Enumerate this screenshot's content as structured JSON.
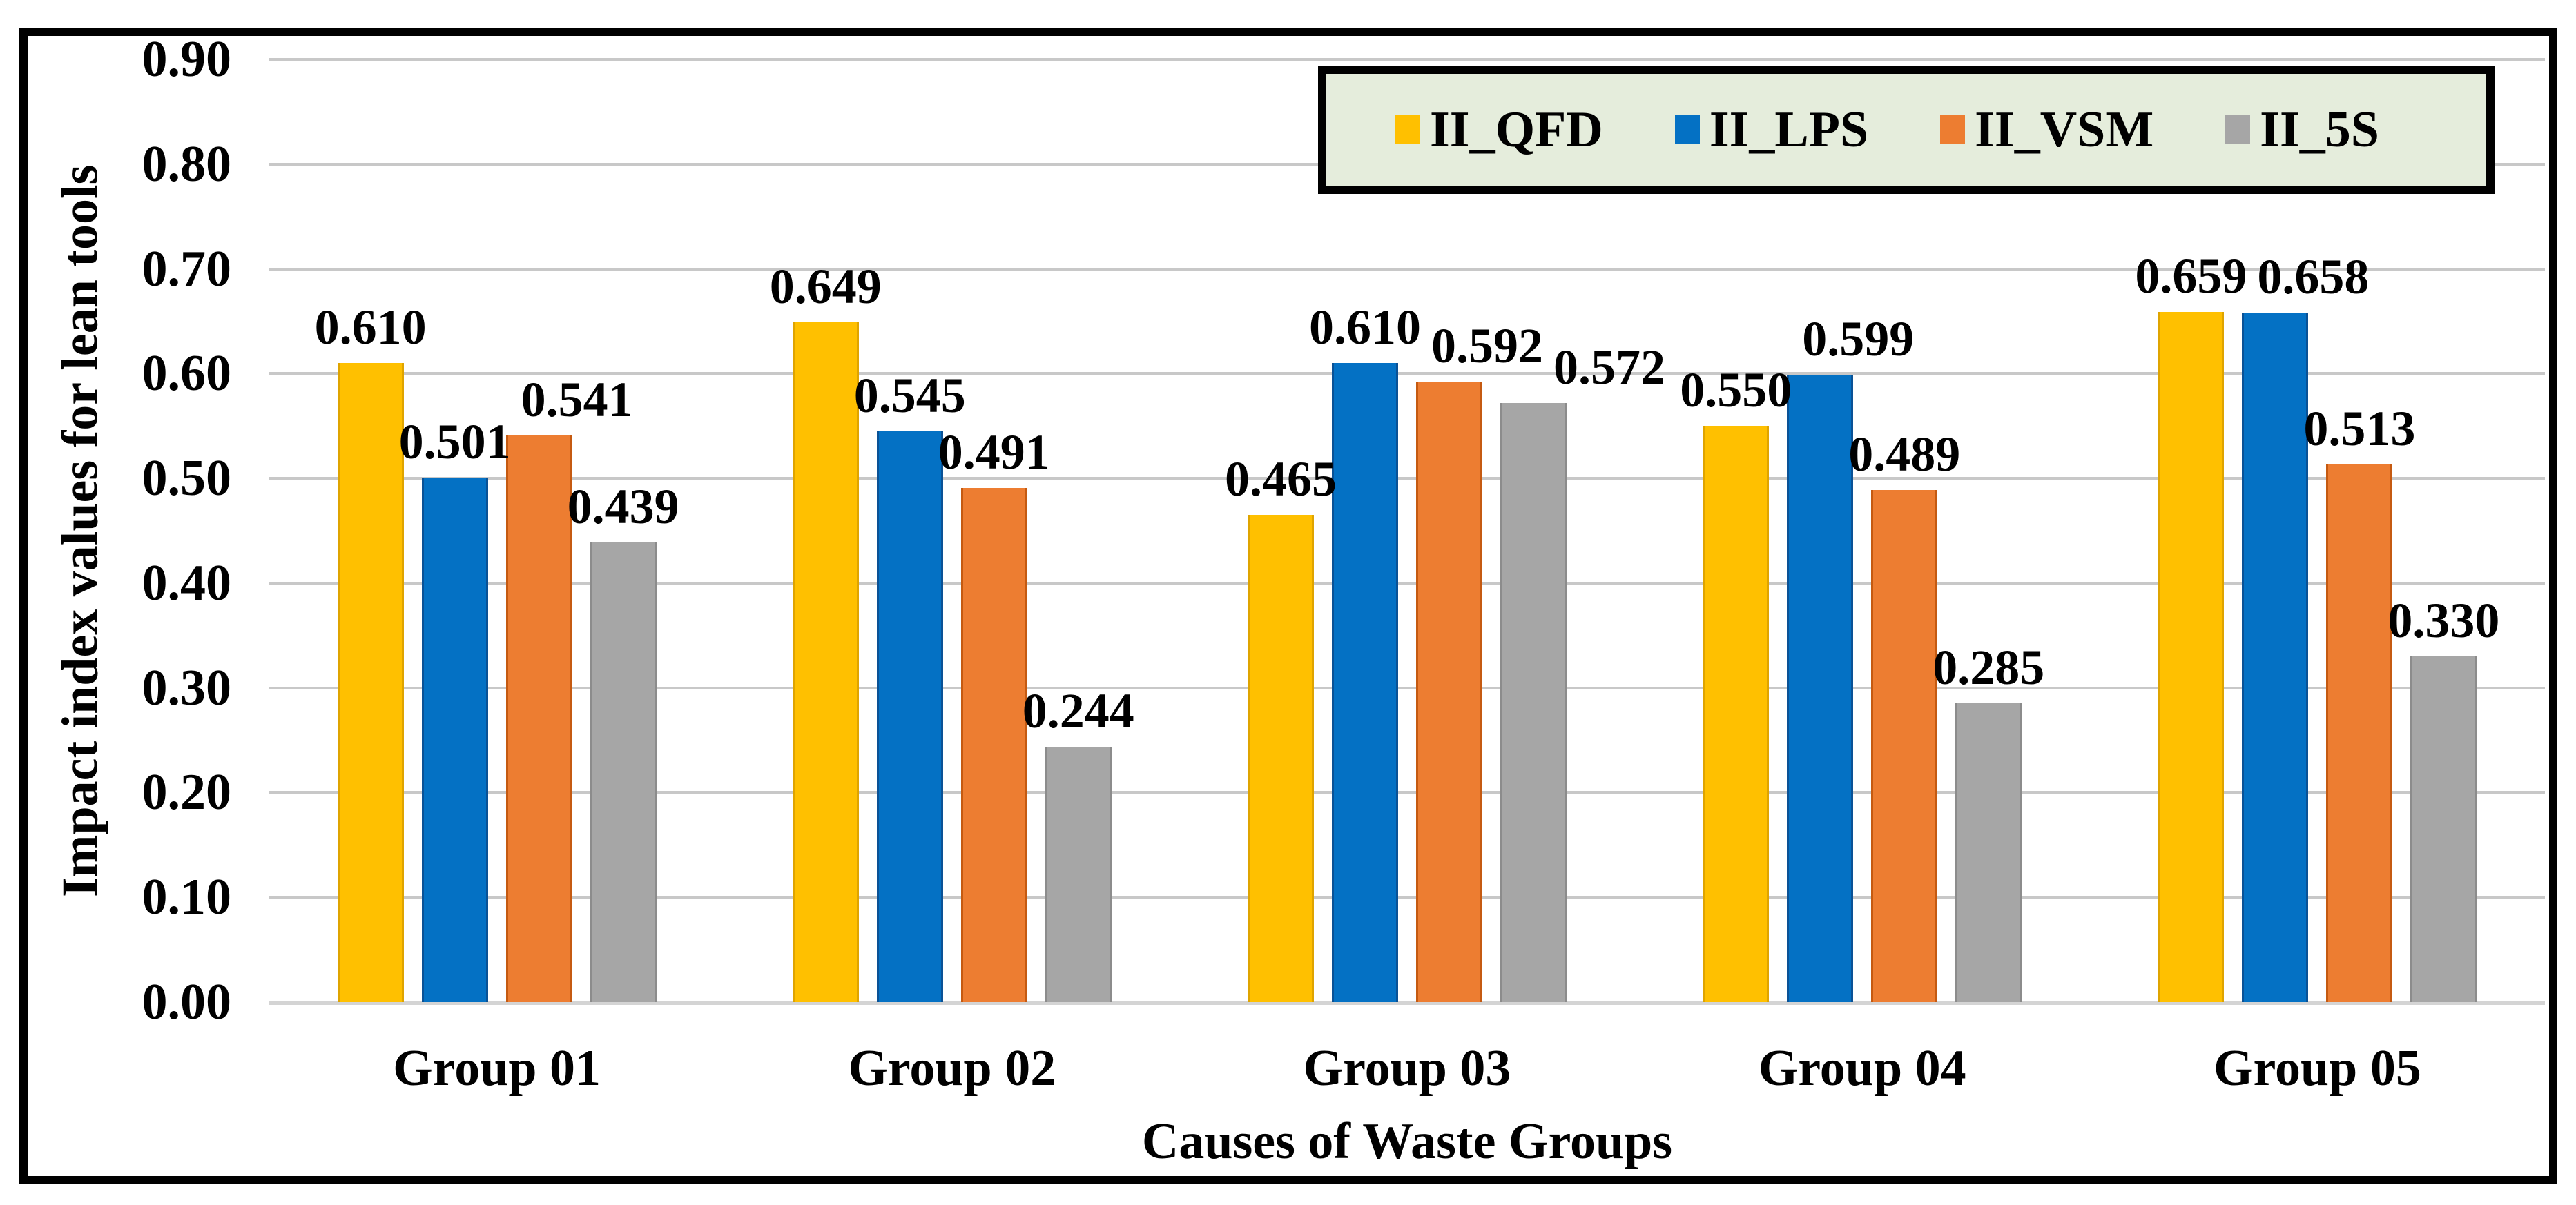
{
  "figure": {
    "background": "#FFFFFF",
    "border_color": "#000000"
  },
  "legend": {
    "background": "#E5EDDC",
    "border_color": "#000000",
    "position": "top-right",
    "items": [
      {
        "label": "II_QFD",
        "color": "#FFC000"
      },
      {
        "label": "II_LPS",
        "color": "#0471C4"
      },
      {
        "label": "II_VSM",
        "color": "#ED7D31"
      },
      {
        "label": "II_5S",
        "color": "#A6A6A6"
      }
    ]
  },
  "chart_data": {
    "type": "bar",
    "title": "",
    "xlabel": "Causes of Waste Groups",
    "ylabel": "Impact index values for lean tools",
    "ylim": [
      0.0,
      0.9
    ],
    "ytick_step": 0.1,
    "ytick_labels": [
      "0.90",
      "0.80",
      "0.70",
      "0.60",
      "0.50",
      "0.40",
      "0.30",
      "0.20",
      "0.10",
      "0.00"
    ],
    "grid": "horizontal",
    "label_format": "0.000",
    "categories": [
      "Group 01",
      "Group 02",
      "Group 03",
      "Group 04",
      "Group 05"
    ],
    "series": [
      {
        "name": "II_QFD",
        "color": "#FFC000",
        "edge": "#DFA400",
        "values": [
          0.61,
          0.649,
          0.465,
          0.55,
          0.659
        ]
      },
      {
        "name": "II_LPS",
        "color": "#0471C4",
        "edge": "#0A5296",
        "values": [
          0.501,
          0.545,
          0.61,
          0.599,
          0.658
        ]
      },
      {
        "name": "II_VSM",
        "color": "#ED7D31",
        "edge": "#C55A11",
        "values": [
          0.541,
          0.491,
          0.592,
          0.489,
          0.513
        ]
      },
      {
        "name": "II_5S",
        "color": "#A6A6A6",
        "edge": "#8C8C8C",
        "values": [
          0.439,
          0.244,
          0.572,
          0.285,
          0.33
        ]
      }
    ]
  }
}
